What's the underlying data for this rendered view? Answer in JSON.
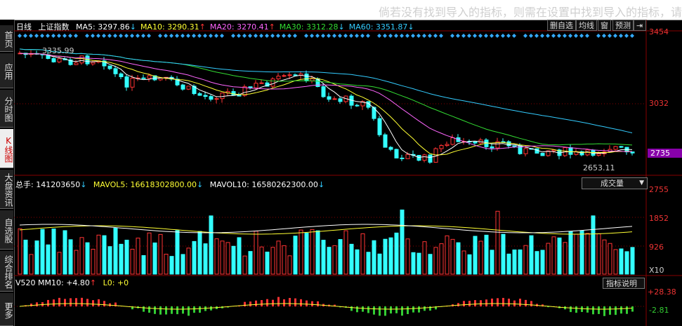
{
  "banner": "倘若没有找到导入的指标，则需在设置中找到导入的指标，请",
  "sidebar": [
    {
      "label": "首页",
      "active": false
    },
    {
      "label": "应用",
      "active": false
    },
    {
      "label": "分时图",
      "active": false
    },
    {
      "label": "K线图",
      "active": true
    },
    {
      "label": "大盘资讯",
      "active": false
    },
    {
      "label": "自选股",
      "active": false
    },
    {
      "label": "综合排名",
      "active": false
    },
    {
      "label": "更多",
      "active": false
    }
  ],
  "kline": {
    "period": "日线",
    "name": "上证指数",
    "ma": [
      {
        "label": "MA5: 3297.86",
        "dir": "↓",
        "color": "#ffffff"
      },
      {
        "label": "MA10: 3290.31",
        "dir": "↑",
        "color": "#ffff33"
      },
      {
        "label": "MA20: 3270.41",
        "dir": "↑",
        "color": "#ff66ff"
      },
      {
        "label": "MA30: 3312.28",
        "dir": "↓",
        "color": "#33dd33"
      },
      {
        "label": "MA60: 3351.87",
        "dir": "↓",
        "color": "#33ccff"
      }
    ],
    "buttons": [
      "删自选",
      "均线",
      "窗",
      "预测"
    ],
    "y_labels": [
      "3454",
      "3032",
      "2735"
    ],
    "high_label": "3335.99",
    "low_label": "2653.11",
    "current": "2735"
  },
  "volume": {
    "total_label": "总手: 141203650",
    "mavol5": "MAVOL5: 16618302800.00",
    "mavol10": "MAVOL10: 16580262300.00",
    "dropdown": "成交量",
    "y_labels": [
      "2755",
      "1852",
      "926"
    ],
    "multiplier": "X10"
  },
  "indicator": {
    "label": "V520 MM10: +4.80",
    "l0": "L0: +0",
    "button": "指标说明",
    "y_labels": [
      "+28.38",
      "-2.81"
    ]
  },
  "colors": {
    "up": "#ff3333",
    "down": "#33ffff",
    "grid": "#880000"
  }
}
